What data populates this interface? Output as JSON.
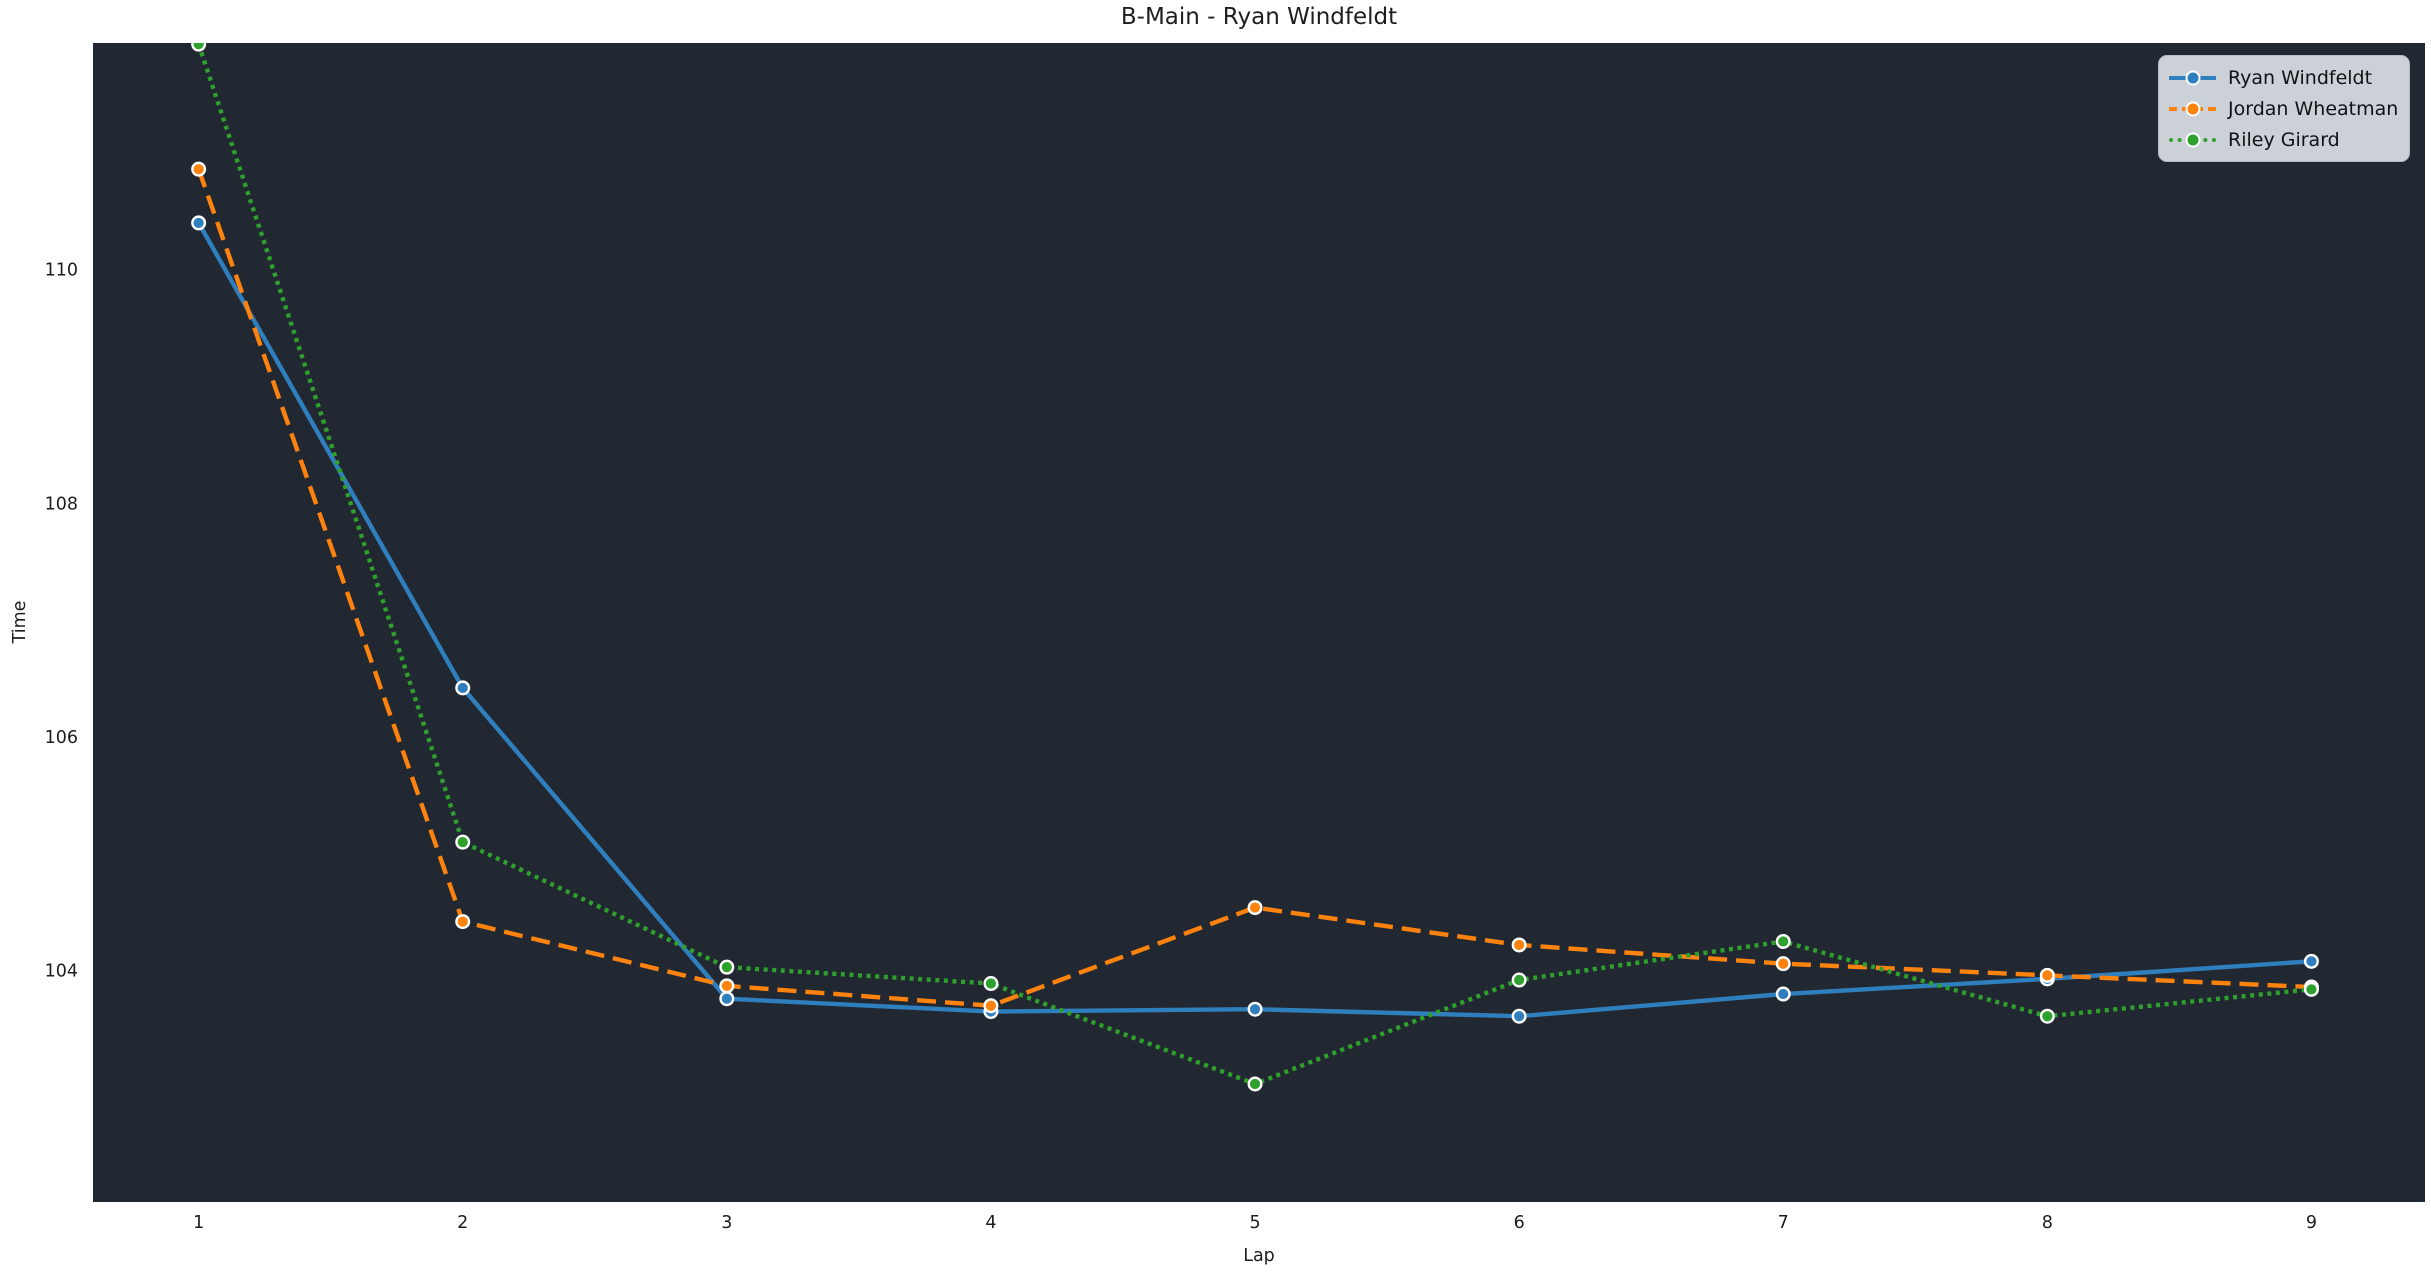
{
  "chart_data": {
    "type": "line",
    "title": "B-Main - Ryan Windfeldt",
    "xlabel": "Lap",
    "ylabel": "Time",
    "x": [
      1,
      2,
      3,
      4,
      5,
      6,
      7,
      8,
      9
    ],
    "xticks": [
      1,
      2,
      3,
      4,
      5,
      6,
      7,
      8,
      9
    ],
    "yticks": [
      104,
      106,
      108,
      110
    ],
    "xlim": [
      0.6,
      9.43
    ],
    "ylim": [
      102.02,
      111.94
    ],
    "grid": false,
    "legend_position": "upper right",
    "series": [
      {
        "name": "Ryan Windfeldt",
        "color": "#2f7fbf",
        "line_style": "solid",
        "marker": "circle",
        "values": [
          110.4,
          106.42,
          103.76,
          103.65,
          103.67,
          103.61,
          103.8,
          103.93,
          104.08
        ]
      },
      {
        "name": "Jordan Wheatman",
        "color": "#fd830e",
        "line_style": "dashed",
        "marker": "circle",
        "values": [
          110.86,
          104.42,
          103.87,
          103.7,
          104.54,
          104.22,
          104.06,
          103.96,
          103.86
        ]
      },
      {
        "name": "Riley Girard",
        "color": "#2ea12c",
        "line_style": "dotted",
        "marker": "circle",
        "values": [
          111.93,
          105.1,
          104.03,
          103.89,
          103.03,
          103.92,
          104.25,
          103.61,
          103.84
        ]
      }
    ],
    "colors": {
      "plot_bg": "#222831",
      "figure_bg": "#ffffff",
      "text": "#1d1d1d",
      "legend_bg": "#ccd0d7",
      "legend_border": "#b7bbc3",
      "marker_edge": "#ffffff"
    }
  }
}
